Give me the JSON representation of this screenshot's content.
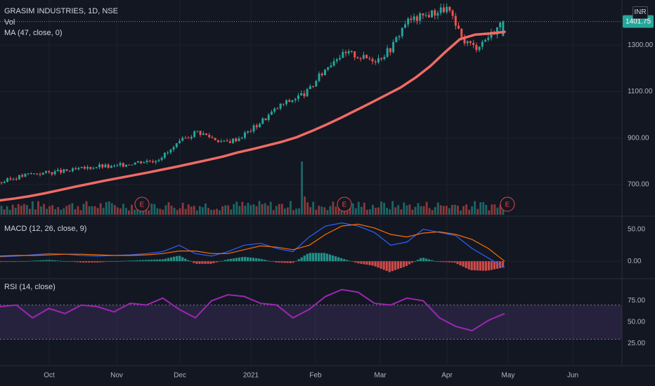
{
  "header": {
    "title": "GRASIM INDUSTRIES, 1D, NSE",
    "vol_label": "Vol",
    "ma_label": "MA (47, close, 0)",
    "currency": "INR"
  },
  "macd_label": "MACD (12, 26, close, 9)",
  "rsi_label": "RSI (14, close)",
  "earnings_marker": "E",
  "colors": {
    "background": "#131722",
    "up": "#26a69a",
    "down": "#ef5350",
    "ma": "#f06b65",
    "macd_line": "#2962ff",
    "signal_line": "#ff6d00",
    "rsi_line": "#9c27b0",
    "last_price_badge": "#26a69a"
  },
  "chart_data": [
    {
      "type": "line",
      "title": "GRASIM INDUSTRIES, 1D, NSE",
      "x_ticks": [
        "Oct",
        "Nov",
        "Dec",
        "2021",
        "Feb",
        "Mar",
        "Apr",
        "May",
        "Jun"
      ],
      "y_ticks": [
        700,
        900,
        1100,
        1300
      ],
      "ylim": [
        570,
        1470
      ],
      "scale": "linear",
      "last_price": "1401.75",
      "series": [
        {
          "name": "MA (47, close, 0)",
          "values": [
            632,
            640,
            650,
            662,
            676,
            690,
            703,
            716,
            728,
            740,
            752,
            765,
            778,
            792,
            806,
            820,
            838,
            852,
            868,
            884,
            904,
            930,
            958,
            988,
            1020,
            1052,
            1085,
            1118,
            1160,
            1210,
            1270,
            1326,
            1345,
            1350,
            1357
          ]
        },
        {
          "name": "close",
          "values": [
            710,
            730,
            745,
            750,
            755,
            760,
            770,
            780,
            775,
            790,
            800,
            805,
            840,
            890,
            930,
            905,
            880,
            900,
            940,
            990,
            1040,
            1070,
            1100,
            1180,
            1250,
            1265,
            1245,
            1240,
            1290,
            1400,
            1420,
            1440,
            1460,
            1330,
            1290,
            1340,
            1401.75
          ]
        }
      ]
    },
    {
      "type": "bar",
      "title": "Vol",
      "note": "relative volume, with one large spike in late January"
    },
    {
      "type": "line",
      "title": "MACD (12, 26, close, 9)",
      "y_ticks": [
        "50.00",
        "0.00"
      ],
      "series": [
        {
          "name": "MACD",
          "values": [
            7,
            8,
            10,
            12,
            11,
            9,
            8,
            9,
            10,
            12,
            15,
            25,
            12,
            8,
            15,
            25,
            28,
            20,
            15,
            38,
            55,
            60,
            55,
            45,
            25,
            30,
            50,
            45,
            40,
            20,
            5,
            -10
          ]
        },
        {
          "name": "Signal",
          "values": [
            8,
            9,
            9,
            10,
            11,
            11,
            10,
            9,
            9,
            10,
            12,
            16,
            16,
            12,
            12,
            18,
            24,
            22,
            18,
            25,
            42,
            55,
            58,
            52,
            42,
            38,
            44,
            46,
            42,
            34,
            20,
            0
          ]
        }
      ]
    },
    {
      "type": "line",
      "title": "RSI (14, close)",
      "y_ticks": [
        "75.00",
        "50.00",
        "25.00"
      ],
      "ylim": [
        0,
        100
      ],
      "bands": [
        30,
        70
      ],
      "series": [
        {
          "name": "RSI",
          "values": [
            68,
            70,
            55,
            66,
            60,
            70,
            68,
            62,
            72,
            70,
            78,
            65,
            55,
            75,
            82,
            80,
            72,
            70,
            55,
            65,
            80,
            88,
            85,
            72,
            70,
            78,
            75,
            55,
            45,
            40,
            52,
            60
          ]
        }
      ]
    }
  ]
}
